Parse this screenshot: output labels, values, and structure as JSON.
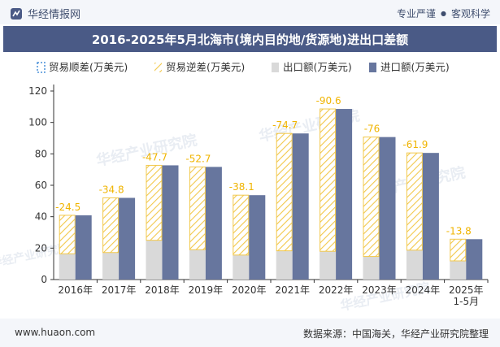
{
  "header": {
    "site_name": "华经情报网",
    "tagline_left": "专业严谨",
    "tagline_sep": "●",
    "tagline_right": "客观科学"
  },
  "title": "2016-2025年5月北海市(境内目的地/货源地)进出口差额",
  "footer": {
    "url": "www.huaon.com",
    "source": "数据来源：中国海关，华经产业研究院整理"
  },
  "watermark": "华经产业研究院",
  "colors": {
    "surplus": "#4a90d9",
    "deficit_stroke": "#f2c84b",
    "export": "#d9d9d9",
    "import": "#67769e",
    "label": "#f0b400"
  },
  "chart_data": {
    "type": "bar",
    "categories": [
      "2016年",
      "2017年",
      "2018年",
      "2019年",
      "2020年",
      "2021年",
      "2022年",
      "2023年",
      "2024年",
      "2025年\n1-5月"
    ],
    "series": [
      {
        "name": "贸易顺差(万美元)",
        "values": [
          0,
          0,
          0,
          0,
          0,
          0,
          0,
          0,
          0,
          0
        ]
      },
      {
        "name": "贸易逆差(万美元)",
        "values": [
          -24.5,
          -34.8,
          -47.7,
          -52.7,
          -38.1,
          -74.7,
          -90.6,
          -76,
          -61.9,
          -13.8
        ]
      },
      {
        "name": "出口额(万美元)",
        "values": [
          16.4,
          17.2,
          25.0,
          19.0,
          15.6,
          18.3,
          18.0,
          14.7,
          18.7,
          11.9
        ]
      },
      {
        "name": "进口额(万美元)",
        "values": [
          40.9,
          52.0,
          72.7,
          71.7,
          53.7,
          93.0,
          108.6,
          90.7,
          80.6,
          25.7
        ]
      }
    ],
    "data_labels": [
      "-24.5",
      "-34.8",
      "-47.7",
      "-52.7",
      "-38.1",
      "-74.7",
      "-90.6",
      "-76",
      "-61.9",
      "-13.8"
    ],
    "yticks": [
      "0",
      "20",
      "40",
      "60",
      "80",
      "100",
      "120"
    ],
    "ylim": [
      0,
      120
    ],
    "legend_position": "top-left",
    "grid": false
  }
}
